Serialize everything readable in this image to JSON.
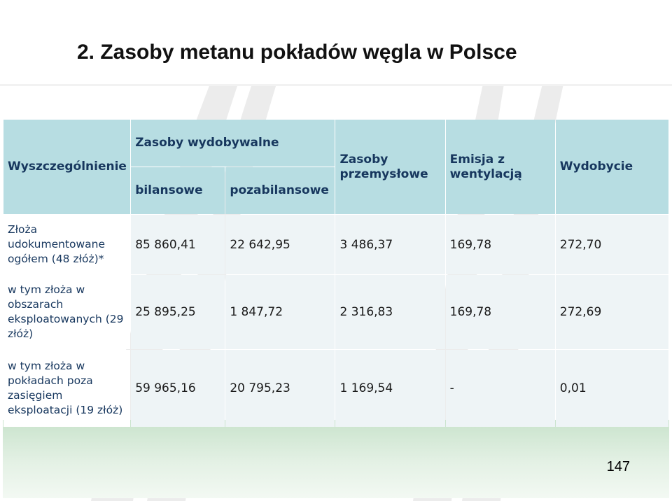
{
  "title": "2. Zasoby metanu pokładów węgla w Polsce",
  "page_number": "147",
  "table": {
    "headers": {
      "item": "Wyszczególnienie",
      "recoverable_group": "Zasoby wydobywalne",
      "balance": "bilansowe",
      "off_balance": "pozabilansowe",
      "industrial": "Zasoby przemysłowe",
      "emission": "Emisja z wentylacją",
      "production": "Wydobycie"
    },
    "rows": [
      {
        "label": "Złoża udokumentowane ogółem (48 złóż)*",
        "balance": "85 860,41",
        "off_balance": "22 642,95",
        "industrial": "3 486,37",
        "emission": "169,78",
        "production": "272,70"
      },
      {
        "label": "w tym złoża w obszarach eksploatowanych (29 złóż)",
        "balance": "25 895,25",
        "off_balance": "1 847,72",
        "industrial": "2 316,83",
        "emission": "169,78",
        "production": "272,69"
      },
      {
        "label": "w tym złoża w pokładach poza zasięgiem eksploatacji (19 złóż)",
        "balance": "59 965,16",
        "off_balance": "20 795,23",
        "industrial": "1 169,54",
        "emission": "-",
        "production": "0,01"
      }
    ]
  },
  "colors": {
    "header_bg": "#b7dde2",
    "header_text": "#17375e",
    "cell_bg": "#eef4f6",
    "footer_band": "#c9e3cc"
  }
}
